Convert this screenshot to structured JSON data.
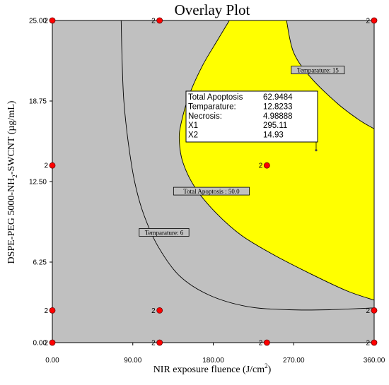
{
  "chart_data": {
    "type": "scatter",
    "title": "Overlay Plot",
    "xlabel": {
      "main": "NIR exposure fluence (J/cm",
      "sup": "2",
      "end": ")"
    },
    "ylabel": {
      "main": "DSPE-PEG 5000-NH",
      "sub": "2",
      "end": "-SWCNT (µg/mL)"
    },
    "xlim": [
      0,
      360
    ],
    "ylim": [
      0,
      25
    ],
    "xticks": [
      {
        "value": 0,
        "label": "0.00"
      },
      {
        "value": 90,
        "label": "90.00"
      },
      {
        "value": 180,
        "label": "180.00"
      },
      {
        "value": 270,
        "label": "270.00"
      },
      {
        "value": 360,
        "label": "360.00"
      }
    ],
    "yticks": [
      {
        "value": 0,
        "label": "0.00"
      },
      {
        "value": 6.25,
        "label": "6.25"
      },
      {
        "value": 12.5,
        "label": "12.50"
      },
      {
        "value": 18.75,
        "label": "18.75"
      },
      {
        "value": 25,
        "label": "25.00"
      }
    ],
    "background_color": "#c0c0c0",
    "feasible_color": "#ffff00",
    "point_color": "#ff0000",
    "design_points": [
      {
        "x": 0,
        "y": 0,
        "label": "2"
      },
      {
        "x": 120,
        "y": 0,
        "label": "2"
      },
      {
        "x": 240,
        "y": 0,
        "label": "2"
      },
      {
        "x": 360,
        "y": 0,
        "label": "2"
      },
      {
        "x": 0,
        "y": 2.5,
        "label": "2"
      },
      {
        "x": 120,
        "y": 2.5,
        "label": "2"
      },
      {
        "x": 360,
        "y": 2.5,
        "label": "2"
      },
      {
        "x": 0,
        "y": 13.75,
        "label": "2"
      },
      {
        "x": 240,
        "y": 13.75,
        "label": "2"
      },
      {
        "x": 0,
        "y": 25,
        "label": "2"
      },
      {
        "x": 120,
        "y": 25,
        "label": "2"
      },
      {
        "x": 360,
        "y": 25,
        "label": "2"
      }
    ],
    "contours": [
      {
        "label": "Temparature: 6",
        "points": [
          [
            77,
            25
          ],
          [
            78,
            22
          ],
          [
            80,
            18.75
          ],
          [
            85,
            15.5
          ],
          [
            92,
            12.5
          ],
          [
            102,
            10
          ],
          [
            118,
            7.5
          ],
          [
            142,
            5.2
          ],
          [
            175,
            3.7
          ],
          [
            218,
            2.8
          ],
          [
            265,
            2.55
          ],
          [
            310,
            2.55
          ],
          [
            360,
            2.7
          ]
        ]
      },
      {
        "label": "Total Apoptosis : 50.0",
        "points": [
          [
            198,
            25
          ],
          [
            185,
            23.5
          ],
          [
            168,
            21.5
          ],
          [
            153,
            19.2
          ],
          [
            144,
            17
          ],
          [
            142,
            15.7
          ],
          [
            146,
            14
          ],
          [
            160,
            12
          ],
          [
            184,
            10
          ],
          [
            212,
            8.3
          ],
          [
            248,
            6.8
          ],
          [
            290,
            5.3
          ],
          [
            330,
            4
          ],
          [
            360,
            3.3
          ]
        ]
      },
      {
        "label": "Temparature: 15",
        "points": [
          [
            262,
            25
          ],
          [
            270,
            22.5
          ],
          [
            290,
            20.5
          ],
          [
            320,
            18.5
          ],
          [
            345,
            17.2
          ],
          [
            360,
            16.6
          ]
        ]
      }
    ],
    "contour_labels": [
      {
        "text": "Temparature: 15",
        "x": 297,
        "y": 21.1
      },
      {
        "text": "Total Apoptosis : 50.0",
        "x": 178,
        "y": 11.7
      },
      {
        "text": "Temparature: 6",
        "x": 125,
        "y": 8.5
      }
    ],
    "flag": {
      "point": {
        "x": 295.11,
        "y": 14.93
      },
      "rows": [
        {
          "name": "Total Apoptosis",
          "value": "62.9484"
        },
        {
          "name": "Temparature:",
          "value": "12.8233"
        },
        {
          "name": "Necrosis:",
          "value": "4.98888"
        },
        {
          "name": "X1",
          "value": "295.11"
        },
        {
          "name": "X2",
          "value": "14.93"
        }
      ]
    }
  }
}
